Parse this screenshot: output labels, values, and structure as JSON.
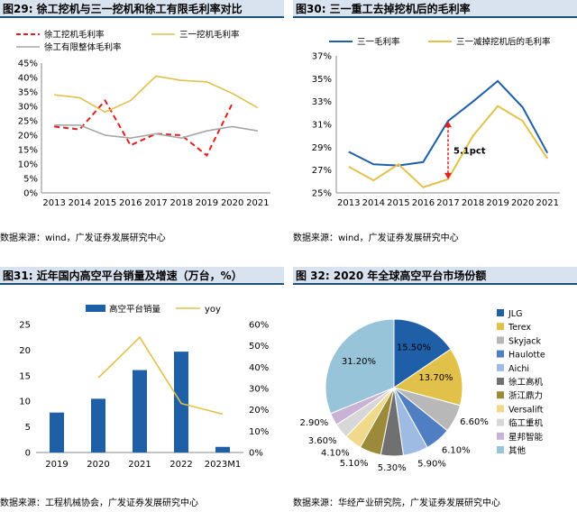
{
  "colors": {
    "navy": "#1f5fa8",
    "gold": "#e2c14a",
    "gray": "#a6a6a6",
    "red": "#e02020",
    "header_bg": "#d9e3f0"
  },
  "chart_data": [
    {
      "type": "line",
      "title": "图29: 徐工挖机与三一挖机和徐工有限毛利率对比",
      "categories": [
        "2013",
        "2014",
        "2015",
        "2016",
        "2017",
        "2018",
        "2019",
        "2020",
        "2021"
      ],
      "series": [
        {
          "name": "徐工挖机毛利率",
          "values": [
            23,
            22,
            32,
            16.5,
            20.5,
            20,
            13,
            31,
            null
          ],
          "color": "#e02020",
          "style": "dashed"
        },
        {
          "name": "三一挖机毛利率",
          "values": [
            34,
            33,
            28,
            32,
            40.5,
            39,
            38.5,
            34.5,
            29.5
          ],
          "color": "#e2c14a",
          "style": "solid"
        },
        {
          "name": "徐工有限整体毛利率",
          "values": [
            23.5,
            23.5,
            20,
            19,
            20.5,
            19,
            21.5,
            23,
            21.5
          ],
          "color": "#a6a6a6",
          "style": "solid"
        }
      ],
      "yticks": [
        "0%",
        "5%",
        "10%",
        "15%",
        "20%",
        "25%",
        "30%",
        "35%",
        "40%",
        "45%"
      ],
      "ylim": [
        0,
        45
      ],
      "source": "数据来源：wind，广发证券发展研究中心"
    },
    {
      "type": "line",
      "title": "图30: 三一重工去掉挖机后的毛利率",
      "categories": [
        "2013",
        "2014",
        "2015",
        "2016",
        "2017",
        "2018",
        "2019",
        "2020",
        "2021"
      ],
      "series": [
        {
          "name": "三一毛利率",
          "values": [
            28.6,
            27.5,
            27.4,
            27.7,
            31.3,
            33.0,
            34.8,
            32.5,
            28.5
          ],
          "color": "#1f5fa8"
        },
        {
          "name": "三一减掉挖机后的毛利率",
          "values": [
            27.3,
            26.1,
            27.5,
            25.5,
            26.2,
            30.0,
            32.6,
            31.3,
            28.0
          ],
          "color": "#e2c14a"
        }
      ],
      "yticks": [
        "25%",
        "27%",
        "29%",
        "31%",
        "33%",
        "35%",
        "37%"
      ],
      "ylim": [
        25,
        37
      ],
      "annotation": {
        "text": "5.1pct",
        "category": "2017",
        "from": 31.3,
        "to": 26.2
      },
      "source": "数据来源：wind，广发证券发展研究中心"
    },
    {
      "type": "bar+line",
      "title": "图31: 近年国内高空平台销量及增速（万台，%）",
      "categories": [
        "2019",
        "2020",
        "2021",
        "2022",
        "2023M1"
      ],
      "series": [
        {
          "name": "高空平台销量",
          "type": "bar",
          "axis": "left",
          "values": [
            7.8,
            10.5,
            16.1,
            19.7,
            1.1
          ],
          "color": "#1f5fa8"
        },
        {
          "name": "yoy",
          "type": "line",
          "axis": "right",
          "values": [
            null,
            35,
            54,
            23,
            18
          ],
          "color": "#e2c14a"
        }
      ],
      "yticks_left": [
        "0",
        "5",
        "10",
        "15",
        "20",
        "25"
      ],
      "yticks_right": [
        "0%",
        "10%",
        "20%",
        "30%",
        "40%",
        "50%",
        "60%"
      ],
      "ylim_left": [
        0,
        25
      ],
      "ylim_right": [
        0,
        60
      ],
      "source": "数据来源：工程机械协会，广发证券发展研究中心"
    },
    {
      "type": "pie",
      "title": "图 32: 2020 年全球高空平台市场份额",
      "slices": [
        {
          "name": "JLG",
          "value": 15.5,
          "label": "15.50%",
          "color": "#1f5fa8"
        },
        {
          "name": "Terex",
          "value": 13.7,
          "label": "13.70%",
          "color": "#e2c14a"
        },
        {
          "name": "Skyjack",
          "value": 6.6,
          "label": "6.60%",
          "color": "#b8b8b8"
        },
        {
          "name": "Haulotte",
          "value": 6.1,
          "label": "6.10%",
          "color": "#4f7ec2"
        },
        {
          "name": "Aichi",
          "value": 5.9,
          "label": "5.90%",
          "color": "#9dbbe3"
        },
        {
          "name": "徐工高机",
          "value": 5.3,
          "label": "5.30%",
          "color": "#707070"
        },
        {
          "name": "浙江鼎力",
          "value": 5.1,
          "label": "5.10%",
          "color": "#9c8a3a"
        },
        {
          "name": "Versalift",
          "value": 4.1,
          "label": "4.10%",
          "color": "#f0d98a"
        },
        {
          "name": "临工重机",
          "value": 3.6,
          "label": "3.60%",
          "color": "#d7d7d7"
        },
        {
          "name": "星邦智能",
          "value": 2.9,
          "label": "2.90%",
          "color": "#c9b2d6"
        },
        {
          "name": "其他",
          "value": 31.2,
          "label": "31.20%",
          "color": "#98c4d9"
        }
      ],
      "source": "数据来源：华经产业研究院，广发证券发展研究中心"
    }
  ]
}
